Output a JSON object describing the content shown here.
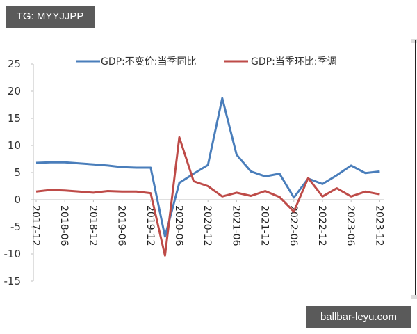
{
  "watermarks": {
    "top": "TG: MYYJJPP",
    "bottom": "ballbar-leyu.com"
  },
  "colors": {
    "series_yoy": "#4a7ebb",
    "series_qoq": "#be4b48",
    "axis": "#bfbfbf",
    "text": "#333333"
  },
  "chart_data": {
    "type": "line",
    "title": "",
    "xlabel": "",
    "ylabel": "",
    "ylim": [
      -15,
      25
    ],
    "yticks": [
      25,
      20,
      15,
      10,
      5,
      0,
      -5,
      -10,
      -15
    ],
    "grid": false,
    "legend_position": "top",
    "x": [
      "2017-12",
      "2018-03",
      "2018-06",
      "2018-09",
      "2018-12",
      "2019-03",
      "2019-06",
      "2019-09",
      "2019-12",
      "2020-03",
      "2020-06",
      "2020-09",
      "2020-12",
      "2021-03",
      "2021-06",
      "2021-09",
      "2021-12",
      "2022-03",
      "2022-06",
      "2022-09",
      "2022-12",
      "2023-03",
      "2023-06",
      "2023-09",
      "2023-12"
    ],
    "xtick_labels": [
      "2017-12",
      "2018-06",
      "2018-12",
      "2019-06",
      "2019-12",
      "2020-06",
      "2020-12",
      "2021-06",
      "2021-12",
      "2022-06",
      "2022-12",
      "2023-06",
      "2023-12"
    ],
    "series": [
      {
        "name": "GDP:不变价:当季同比",
        "color": "#4a7ebb",
        "values": [
          6.8,
          6.9,
          6.9,
          6.7,
          6.5,
          6.3,
          6.0,
          5.9,
          5.9,
          -6.8,
          3.1,
          4.8,
          6.4,
          18.7,
          8.3,
          5.2,
          4.3,
          4.8,
          0.4,
          3.9,
          2.9,
          4.5,
          6.3,
          4.9,
          5.2
        ]
      },
      {
        "name": "GDP:当季环比:季调",
        "color": "#be4b48",
        "values": [
          1.5,
          1.8,
          1.7,
          1.5,
          1.3,
          1.6,
          1.5,
          1.5,
          1.2,
          -10.3,
          11.5,
          3.4,
          2.5,
          0.6,
          1.3,
          0.7,
          1.6,
          0.5,
          -2.2,
          4.0,
          0.6,
          2.1,
          0.6,
          1.5,
          1.0
        ]
      }
    ]
  }
}
